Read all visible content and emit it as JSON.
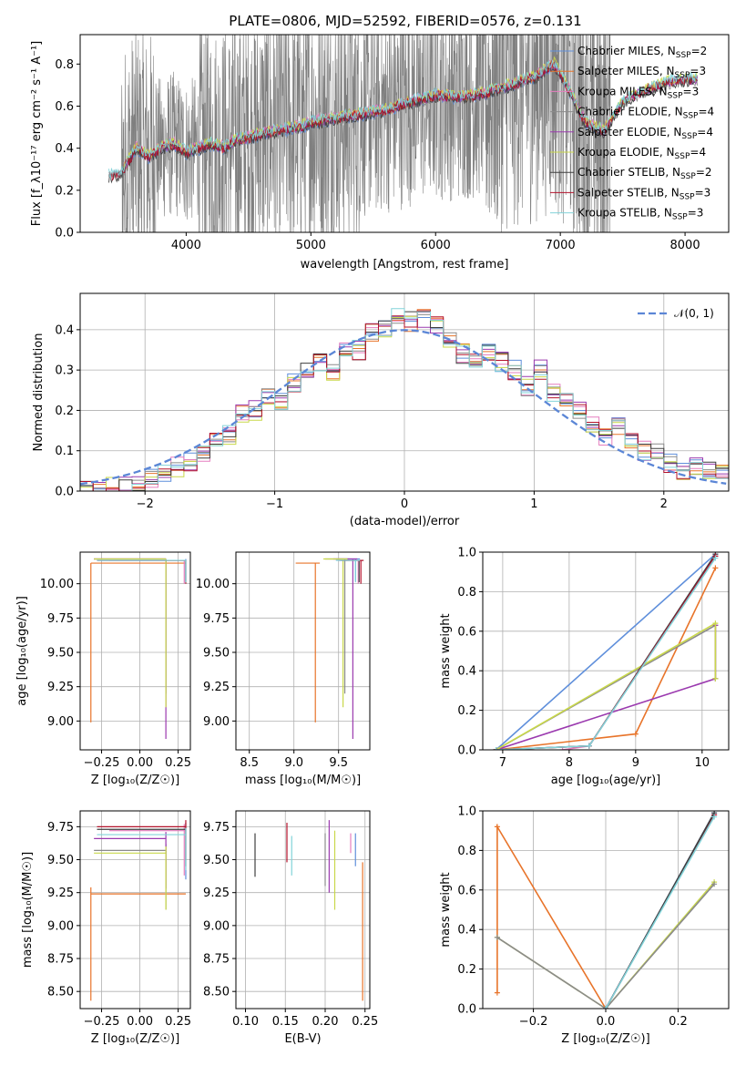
{
  "title": "PLATE=0806, MJD=52592, FIBERID=0576, z=0.131",
  "colors": {
    "Chabrier MILES": "#5f8fdb",
    "Salpeter MILES": "#e8742a",
    "Kroupa MILES": "#e57fbf",
    "Chabrier ELODIE": "#8b8b8b",
    "Salpeter ELODIE": "#9b3aaf",
    "Kroupa ELODIE": "#c9d84a",
    "Chabrier STELIB": "#3f3f3f",
    "Salpeter STELIB": "#b3122b",
    "Kroupa STELIB": "#82d3d9",
    "data": "#7f7f7f",
    "normal": "#5b86d6"
  },
  "legend": [
    {
      "base": "Chabrier MILES, N",
      "sub": "SSP",
      "tail": "=2"
    },
    {
      "base": "Salpeter MILES, N",
      "sub": "SSP",
      "tail": "=3"
    },
    {
      "base": "Kroupa MILES, N",
      "sub": "SSP",
      "tail": "=3"
    },
    {
      "base": "Chabrier ELODIE, N",
      "sub": "SSP",
      "tail": "=4"
    },
    {
      "base": "Salpeter ELODIE, N",
      "sub": "SSP",
      "tail": "=4"
    },
    {
      "base": "Kroupa ELODIE, N",
      "sub": "SSP",
      "tail": "=4"
    },
    {
      "base": "Chabrier STELIB, N",
      "sub": "SSP",
      "tail": "=2"
    },
    {
      "base": "Salpeter STELIB, N",
      "sub": "SSP",
      "tail": "=3"
    },
    {
      "base": "Kroupa STELIB, N",
      "sub": "SSP",
      "tail": "=3"
    }
  ],
  "hist_legend": "𝒩(0, 1)",
  "chart_data": [
    {
      "id": "spectrum",
      "type": "line",
      "xlabel": "wavelength [Angstrom, rest frame]",
      "ylabel": "Flux [f_λ10⁻¹⁷ erg cm⁻² s⁻¹ A⁻¹]",
      "xlim": [
        3150,
        8350
      ],
      "ylim": [
        0,
        0.94
      ],
      "xticks": [
        4000,
        5000,
        6000,
        7000,
        8000
      ],
      "yticks": [
        0.0,
        0.2,
        0.4,
        0.6,
        0.8
      ],
      "ytick_labels": [
        "0.0",
        "0.2",
        "0.4",
        "0.6",
        "0.8"
      ],
      "data_x_range": [
        3380,
        8100
      ],
      "model_continuum": [
        [
          3380,
          0.27
        ],
        [
          3480,
          0.28
        ],
        [
          3600,
          0.4
        ],
        [
          3700,
          0.36
        ],
        [
          3800,
          0.4
        ],
        [
          3900,
          0.42
        ],
        [
          4000,
          0.38
        ],
        [
          4100,
          0.4
        ],
        [
          4200,
          0.42
        ],
        [
          4300,
          0.4
        ],
        [
          4400,
          0.44
        ],
        [
          4500,
          0.45
        ],
        [
          4700,
          0.48
        ],
        [
          4900,
          0.5
        ],
        [
          5000,
          0.52
        ],
        [
          5200,
          0.54
        ],
        [
          5400,
          0.56
        ],
        [
          5600,
          0.58
        ],
        [
          5800,
          0.62
        ],
        [
          6000,
          0.65
        ],
        [
          6200,
          0.64
        ],
        [
          6400,
          0.66
        ],
        [
          6600,
          0.7
        ],
        [
          6800,
          0.74
        ],
        [
          6950,
          0.8
        ],
        [
          7050,
          0.7
        ],
        [
          7200,
          0.52
        ],
        [
          7350,
          0.48
        ],
        [
          7500,
          0.62
        ],
        [
          7700,
          0.68
        ],
        [
          7900,
          0.72
        ],
        [
          8100,
          0.73
        ]
      ]
    },
    {
      "id": "residuals",
      "type": "histogram",
      "xlabel": "(data-model)/error",
      "ylabel": "Normed distribution",
      "xlim": [
        -2.5,
        2.5
      ],
      "ylim": [
        0,
        0.49
      ],
      "xticks": [
        -2,
        -1,
        0,
        1,
        2
      ],
      "xtick_labels": [
        "−2",
        "−1",
        "0",
        "1",
        "2"
      ],
      "yticks": [
        0.0,
        0.1,
        0.2,
        0.3,
        0.4
      ],
      "ytick_labels": [
        "0.0",
        "0.1",
        "0.2",
        "0.3",
        "0.4"
      ],
      "bin_edges_start": -2.5,
      "bin_width": 0.1,
      "base_density": [
        0.0,
        0.005,
        0.01,
        0.01,
        0.02,
        0.03,
        0.04,
        0.06,
        0.07,
        0.09,
        0.12,
        0.14,
        0.19,
        0.2,
        0.24,
        0.22,
        0.27,
        0.3,
        0.32,
        0.3,
        0.36,
        0.35,
        0.39,
        0.4,
        0.44,
        0.42,
        0.43,
        0.41,
        0.38,
        0.34,
        0.33,
        0.34,
        0.32,
        0.3,
        0.26,
        0.3,
        0.24,
        0.22,
        0.2,
        0.17,
        0.13,
        0.16,
        0.12,
        0.1,
        0.1,
        0.07,
        0.05,
        0.06,
        0.05,
        0.04
      ]
    },
    {
      "id": "age_vs_Z",
      "type": "scatter",
      "xlabel": "Z [log₁₀(Z/Z☉)]",
      "ylabel": "age  [log₁₀(age/yr)]",
      "xlim": [
        -0.39,
        0.33
      ],
      "ylim": [
        8.79,
        10.23
      ],
      "xticks": [
        -0.25,
        0.0,
        0.25
      ],
      "xtick_labels": [
        "−0.25",
        "0.00",
        "0.25"
      ],
      "yticks": [
        9.0,
        9.25,
        9.5,
        9.75,
        10.0
      ],
      "ytick_labels": [
        "9.00",
        "9.25",
        "9.50",
        "9.75",
        "10.00"
      ]
    },
    {
      "id": "age_vs_mass",
      "type": "scatter",
      "xlabel": "mass [log₁₀(M/M☉)]",
      "xlim": [
        8.35,
        9.85
      ],
      "ylim": [
        8.79,
        10.23
      ],
      "xticks": [
        8.5,
        9.0,
        9.5
      ],
      "xtick_labels": [
        "8.5",
        "9.0",
        "9.5"
      ],
      "yticks": [
        9.0,
        9.25,
        9.5,
        9.75,
        10.0
      ],
      "ytick_labels": [
        "9.00",
        "9.25",
        "9.50",
        "9.75",
        "10.00"
      ]
    },
    {
      "id": "weight_vs_age",
      "type": "line",
      "xlabel": "age  [log₁₀(age/yr)]",
      "ylabel": "mass weight",
      "xlim": [
        6.7,
        10.4
      ],
      "ylim": [
        0,
        1.0
      ],
      "xticks": [
        7,
        8,
        9,
        10
      ],
      "xtick_labels": [
        "7",
        "8",
        "9",
        "10"
      ],
      "yticks": [
        0.0,
        0.2,
        0.4,
        0.6,
        0.8,
        1.0
      ],
      "ytick_labels": [
        "0.0",
        "0.2",
        "0.4",
        "0.6",
        "0.8",
        "1.0"
      ],
      "series": [
        {
          "model": "Chabrier MILES",
          "points": [
            [
              6.9,
              0.0
            ],
            [
              10.2,
              0.99
            ]
          ]
        },
        {
          "model": "Salpeter MILES",
          "points": [
            [
              6.9,
              0.0
            ],
            [
              9.0,
              0.08
            ],
            [
              10.2,
              0.92
            ]
          ]
        },
        {
          "model": "Kroupa MILES",
          "points": [
            [
              7.9,
              0.0
            ],
            [
              8.3,
              0.02
            ],
            [
              10.2,
              0.98
            ]
          ]
        },
        {
          "model": "Chabrier ELODIE",
          "points": [
            [
              6.9,
              0.0
            ],
            [
              10.2,
              0.63
            ],
            [
              10.2,
              0.36
            ]
          ]
        },
        {
          "model": "Salpeter ELODIE",
          "points": [
            [
              6.9,
              0.0
            ],
            [
              10.2,
              0.36
            ],
            [
              10.2,
              0.63
            ]
          ]
        },
        {
          "model": "Kroupa ELODIE",
          "points": [
            [
              6.9,
              0.0
            ],
            [
              10.2,
              0.64
            ],
            [
              10.2,
              0.36
            ]
          ]
        },
        {
          "model": "Chabrier STELIB",
          "points": [
            [
              6.9,
              0.0
            ],
            [
              8.3,
              0.02
            ],
            [
              10.2,
              0.99
            ]
          ]
        },
        {
          "model": "Salpeter STELIB",
          "points": [
            [
              6.9,
              0.0
            ],
            [
              8.3,
              0.02
            ],
            [
              10.2,
              0.98
            ]
          ]
        },
        {
          "model": "Kroupa STELIB",
          "points": [
            [
              6.9,
              0.0
            ],
            [
              8.3,
              0.02
            ],
            [
              10.2,
              0.97
            ]
          ]
        }
      ]
    },
    {
      "id": "mass_vs_Z",
      "type": "scatter",
      "xlabel": "Z [log₁₀(Z/Z☉)]",
      "ylabel": "mass [log₁₀(M/M☉)]",
      "xlim": [
        -0.39,
        0.33
      ],
      "ylim": [
        8.37,
        9.87
      ],
      "xticks": [
        -0.25,
        0.0,
        0.25
      ],
      "xtick_labels": [
        "−0.25",
        "0.00",
        "0.25"
      ],
      "yticks": [
        8.5,
        8.75,
        9.0,
        9.25,
        9.5,
        9.75
      ],
      "ytick_labels": [
        "8.50",
        "8.75",
        "9.00",
        "9.25",
        "9.50",
        "9.75"
      ]
    },
    {
      "id": "mass_vs_EBV",
      "type": "scatter",
      "xlabel": "E(B-V)",
      "xlim": [
        0.088,
        0.256
      ],
      "ylim": [
        8.37,
        9.87
      ],
      "xticks": [
        0.1,
        0.15,
        0.2,
        0.25
      ],
      "xtick_labels": [
        "0.10",
        "0.15",
        "0.20",
        "0.25"
      ],
      "yticks": [
        8.5,
        8.75,
        9.0,
        9.25,
        9.5,
        9.75
      ],
      "ytick_labels": [
        "8.50",
        "8.75",
        "9.00",
        "9.25",
        "9.50",
        "9.75"
      ]
    },
    {
      "id": "weight_vs_Z",
      "type": "line",
      "xlabel": "Z [log₁₀(Z/Z☉)]",
      "ylabel": "mass weight",
      "xlim": [
        -0.34,
        0.34
      ],
      "ylim": [
        0,
        1.0
      ],
      "xticks": [
        -0.2,
        0.0,
        0.2
      ],
      "xtick_labels": [
        "−0.2",
        "0.0",
        "0.2"
      ],
      "yticks": [
        0.0,
        0.2,
        0.4,
        0.6,
        0.8,
        1.0
      ],
      "ytick_labels": [
        "0.0",
        "0.2",
        "0.4",
        "0.6",
        "0.8",
        "1.0"
      ],
      "series": [
        {
          "model": "Salpeter MILES",
          "points": [
            [
              -0.3,
              0.08
            ],
            [
              -0.3,
              0.92
            ],
            [
              0.0,
              0.0
            ]
          ]
        },
        {
          "model": "Kroupa ELODIE",
          "points": [
            [
              -0.3,
              0.36
            ],
            [
              0.0,
              0.0
            ],
            [
              0.3,
              0.64
            ]
          ]
        },
        {
          "model": "Chabrier ELODIE",
          "points": [
            [
              -0.3,
              0.36
            ],
            [
              0.0,
              0.0
            ],
            [
              0.3,
              0.63
            ]
          ]
        },
        {
          "model": "Chabrier MILES",
          "points": [
            [
              0.0,
              0.0
            ],
            [
              0.3,
              0.99
            ]
          ]
        },
        {
          "model": "Kroupa MILES",
          "points": [
            [
              0.0,
              0.0
            ],
            [
              0.3,
              0.98
            ]
          ]
        },
        {
          "model": "Salpeter STELIB",
          "points": [
            [
              0.0,
              0.0
            ],
            [
              0.3,
              0.98
            ]
          ]
        },
        {
          "model": "Chabrier STELIB",
          "points": [
            [
              0.0,
              0.0
            ],
            [
              0.3,
              0.99
            ]
          ]
        },
        {
          "model": "Kroupa STELIB",
          "points": [
            [
              0.0,
              0.0
            ],
            [
              0.3,
              0.97
            ]
          ]
        }
      ]
    }
  ],
  "ssp_estimates": [
    {
      "model": "Chabrier MILES",
      "Z": 0.3,
      "Zlo": 0.3,
      "Zhi": 0.3,
      "age": 10.18,
      "agelo": 10.02,
      "mass": 9.69,
      "masslo": 9.35,
      "ebv": 0.238,
      "ebvlo": 9.45,
      "ebvhi": 9.7
    },
    {
      "model": "Salpeter MILES",
      "Z": -0.32,
      "Zlo": -0.32,
      "Zhi": 0.3,
      "age": 10.15,
      "agelo": 8.99,
      "mass": 9.24,
      "masslo": 8.43,
      "ebv": 0.247,
      "ebvlo": 8.43,
      "ebvhi": 9.48
    },
    {
      "model": "Kroupa MILES",
      "Z": 0.29,
      "Zlo": -0.2,
      "Zhi": 0.3,
      "age": 10.17,
      "agelo": 10.0,
      "mass": 9.72,
      "masslo": 9.38,
      "ebv": 0.232,
      "ebvlo": 9.55,
      "ebvhi": 9.7
    },
    {
      "model": "Chabrier ELODIE",
      "Z": 0.17,
      "Zlo": -0.3,
      "Zhi": 0.17,
      "age": 10.18,
      "agelo": 9.2,
      "mass": 9.57,
      "masslo": 9.12,
      "ebv": 0.2,
      "ebvlo": 9.3,
      "ebvhi": 9.7
    },
    {
      "model": "Salpeter ELODIE",
      "Z": 0.17,
      "Zlo": -0.3,
      "Zhi": 0.17,
      "age": 10.18,
      "agelo": 8.87,
      "mass": 9.66,
      "masslo": 9.28,
      "ebv": 0.205,
      "ebvlo": 9.25,
      "ebvhi": 9.8
    },
    {
      "model": "Kroupa ELODIE",
      "Z": 0.17,
      "Zlo": -0.3,
      "Zhi": 0.17,
      "age": 10.18,
      "agelo": 9.1,
      "mass": 9.55,
      "masslo": 9.12,
      "ebv": 0.212,
      "ebvlo": 9.12,
      "ebvhi": 9.72
    },
    {
      "model": "Chabrier STELIB",
      "Z": 0.3,
      "Zlo": -0.28,
      "Zhi": 0.3,
      "age": 10.17,
      "agelo": 10.01,
      "mass": 9.73,
      "masslo": 9.45,
      "ebv": 0.112,
      "ebvlo": 9.37,
      "ebvhi": 9.7
    },
    {
      "model": "Salpeter STELIB",
      "Z": 0.3,
      "Zlo": -0.28,
      "Zhi": 0.3,
      "age": 10.17,
      "agelo": 10.0,
      "mass": 9.75,
      "masslo": 9.5,
      "ebv": 0.152,
      "ebvlo": 9.48,
      "ebvhi": 9.78
    },
    {
      "model": "Kroupa STELIB",
      "Z": 0.3,
      "Zlo": -0.28,
      "Zhi": 0.3,
      "age": 10.17,
      "agelo": 10.01,
      "mass": 9.69,
      "masslo": 9.42,
      "ebv": 0.158,
      "ebvlo": 9.38,
      "ebvhi": 9.68
    }
  ]
}
